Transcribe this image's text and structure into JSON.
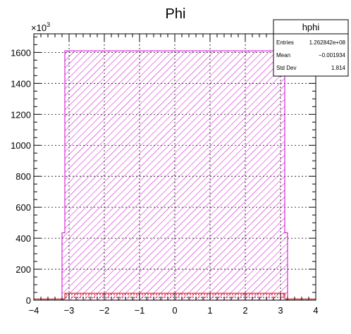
{
  "chart_data": {
    "type": "bar",
    "title": "Phi",
    "xlabel": "",
    "ylabel": "",
    "y_multiplier_label": "×10",
    "y_multiplier_exponent": "3",
    "xlim": [
      -4,
      4
    ],
    "ylim": [
      0,
      1720
    ],
    "x_ticks": [
      -4,
      -3,
      -2,
      -1,
      0,
      1,
      2,
      3,
      4
    ],
    "x_tick_labels": [
      "−4",
      "−3",
      "−2",
      "−1",
      "0",
      "1",
      "2",
      "3",
      "4"
    ],
    "y_ticks": [
      0,
      200,
      400,
      600,
      800,
      1000,
      1200,
      1400,
      1600
    ],
    "y_tick_labels": [
      "0",
      "200",
      "400",
      "600",
      "800",
      "1000",
      "1200",
      "1400",
      "1600"
    ],
    "grid": true,
    "bin_width": 0.08,
    "series": [
      {
        "color": "#cc00cc",
        "fill": "hatch",
        "bins": [
          {
            "x0": -3.2,
            "x1": -3.12,
            "value": 435
          },
          {
            "x0": -3.12,
            "x1": 3.12,
            "value": 1610
          },
          {
            "x0": 3.12,
            "x1": 3.2,
            "value": 435
          }
        ]
      },
      {
        "color": "#cc0000",
        "fill": "dots",
        "bins": [
          {
            "x0": -4.0,
            "x1": -3.12,
            "value": 8
          },
          {
            "x0": -3.12,
            "x1": 3.12,
            "value": 45
          },
          {
            "x0": 3.12,
            "x1": 4.0,
            "value": 8
          }
        ]
      }
    ],
    "stats_box": {
      "name": "hphi",
      "rows": [
        {
          "label": "Entries",
          "value": "1.262842e+08"
        },
        {
          "label": "Mean",
          "value": "−0.001934"
        },
        {
          "label": "Std Dev",
          "value": "1.814"
        }
      ]
    }
  }
}
